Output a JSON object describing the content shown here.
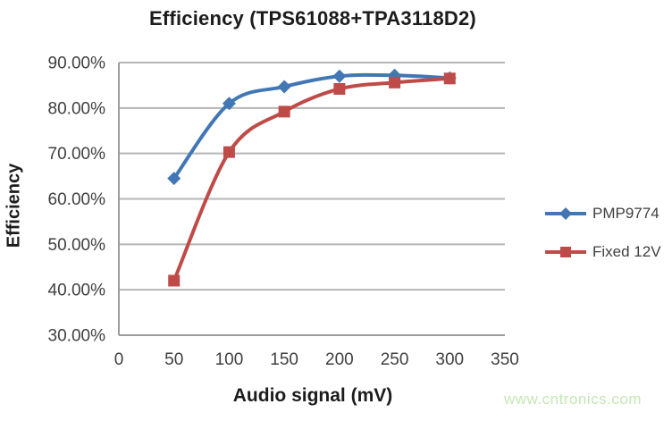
{
  "page": {
    "background": "#ffffff",
    "watermark": "www.cntronics.com",
    "watermark_color": "#c6e6b6"
  },
  "chart_data": {
    "type": "line",
    "title": "Efficiency (TPS61088+TPA3118D2)",
    "xlabel": "Audio signal (mV)",
    "ylabel": "Efficiency",
    "x": [
      50,
      100,
      150,
      200,
      250,
      300
    ],
    "series": [
      {
        "name": "PMP9774",
        "color": "#4277b6",
        "marker": "diamond",
        "values": [
          64.5,
          81.0,
          84.7,
          87.0,
          87.2,
          86.6
        ]
      },
      {
        "name": "Fixed 12V",
        "color": "#bf4b48",
        "marker": "square",
        "values": [
          42.0,
          70.3,
          79.2,
          84.2,
          85.6,
          86.5
        ]
      }
    ],
    "xlim": [
      0,
      350
    ],
    "ylim": [
      30,
      90
    ],
    "x_ticks": [
      0,
      50,
      100,
      150,
      200,
      250,
      300,
      350
    ],
    "y_ticks": [
      30,
      40,
      50,
      60,
      70,
      80,
      90
    ],
    "y_tick_labels": [
      "30.00%",
      "40.00%",
      "50.00%",
      "60.00%",
      "70.00%",
      "80.00%",
      "90.00%"
    ],
    "grid": "horizontal",
    "smooth_lines": true,
    "legend_position": "right",
    "gridline_color": "#b5b5b5",
    "axis_color": "#9e9e9e",
    "tick_label_color": "#3f3f3f"
  }
}
